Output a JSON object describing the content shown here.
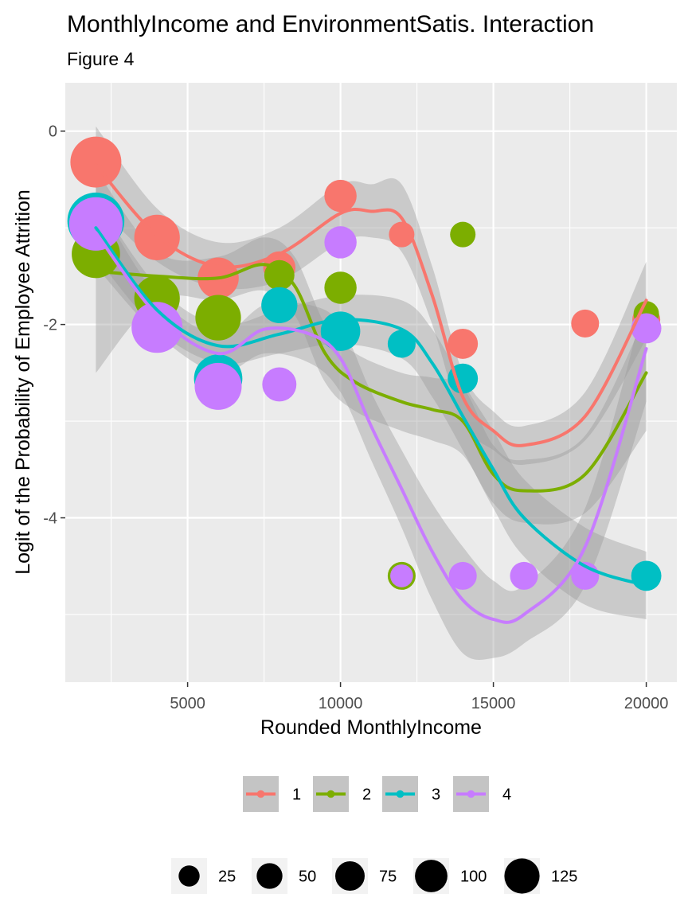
{
  "chart_data": {
    "type": "scatter",
    "title": "MonthlyIncome and EnvironmentSatis. Interaction",
    "subtitle": "Figure 4",
    "xlabel": "Rounded MonthlyIncome",
    "ylabel": "Logit of the Probability of Employee Attrition",
    "xlim": [
      1000,
      21000
    ],
    "ylim": [
      -5.7,
      0.5
    ],
    "x_ticks": [
      5000,
      10000,
      15000,
      20000
    ],
    "y_ticks": [
      0,
      -2,
      -4
    ],
    "grid": true,
    "legend_placement": "bottom",
    "series": [
      {
        "name": "1",
        "color": "#F8766D",
        "points": [
          {
            "x": 2000,
            "y": -0.32,
            "n": 100
          },
          {
            "x": 4000,
            "y": -1.1,
            "n": 80
          },
          {
            "x": 6000,
            "y": -1.52,
            "n": 65
          },
          {
            "x": 8000,
            "y": -1.41,
            "n": 40
          },
          {
            "x": 10000,
            "y": -0.67,
            "n": 40
          },
          {
            "x": 12000,
            "y": -1.07,
            "n": 25
          },
          {
            "x": 14000,
            "y": -2.2,
            "n": 35
          },
          {
            "x": 18000,
            "y": -1.99,
            "n": 30
          },
          {
            "x": 20000,
            "y": -1.95,
            "n": 30
          }
        ],
        "smooth": [
          {
            "x": 2000,
            "y": -0.35
          },
          {
            "x": 4000,
            "y": -1.08
          },
          {
            "x": 6000,
            "y": -1.4
          },
          {
            "x": 8000,
            "y": -1.27
          },
          {
            "x": 10000,
            "y": -0.85
          },
          {
            "x": 11000,
            "y": -0.83
          },
          {
            "x": 12000,
            "y": -0.9
          },
          {
            "x": 13000,
            "y": -1.7
          },
          {
            "x": 14000,
            "y": -2.75
          },
          {
            "x": 15000,
            "y": -3.1
          },
          {
            "x": 16000,
            "y": -3.25
          },
          {
            "x": 18000,
            "y": -2.95
          },
          {
            "x": 20000,
            "y": -1.75
          }
        ],
        "band": {
          "low": [
            -0.75,
            -1.35,
            -1.62,
            -1.55,
            -1.15,
            -1.1,
            -1.25,
            -2.0,
            -3.0,
            -3.3,
            -3.45,
            -3.2,
            -2.15
          ],
          "high": [
            0.05,
            -0.8,
            -1.15,
            -1.0,
            -0.55,
            -0.55,
            -0.55,
            -1.4,
            -2.5,
            -2.9,
            -3.05,
            -2.7,
            -1.35
          ]
        }
      },
      {
        "name": "2",
        "color": "#7CAE00",
        "points": [
          {
            "x": 2000,
            "y": -1.27,
            "n": 90
          },
          {
            "x": 4000,
            "y": -1.73,
            "n": 80
          },
          {
            "x": 6000,
            "y": -1.93,
            "n": 80
          },
          {
            "x": 8000,
            "y": -1.49,
            "n": 35
          },
          {
            "x": 10000,
            "y": -1.62,
            "n": 40
          },
          {
            "x": 12000,
            "y": -4.6,
            "n": 30
          },
          {
            "x": 14000,
            "y": -1.07,
            "n": 25
          },
          {
            "x": 20000,
            "y": -1.89,
            "n": 25
          }
        ],
        "smooth": [
          {
            "x": 2000,
            "y": -1.45
          },
          {
            "x": 4000,
            "y": -1.5
          },
          {
            "x": 6000,
            "y": -1.52
          },
          {
            "x": 7500,
            "y": -1.38
          },
          {
            "x": 8500,
            "y": -1.6
          },
          {
            "x": 9500,
            "y": -2.3
          },
          {
            "x": 10500,
            "y": -2.6
          },
          {
            "x": 12000,
            "y": -2.8
          },
          {
            "x": 13000,
            "y": -2.88
          },
          {
            "x": 14000,
            "y": -3.0
          },
          {
            "x": 15000,
            "y": -3.55
          },
          {
            "x": 16000,
            "y": -3.72
          },
          {
            "x": 18000,
            "y": -3.55
          },
          {
            "x": 20000,
            "y": -2.5
          }
        ],
        "band": {
          "low": [
            -2.5,
            -1.75,
            -1.75,
            -1.65,
            -1.9,
            -2.6,
            -2.9,
            -3.1,
            -3.2,
            -3.35,
            -3.85,
            -4.05,
            -3.95,
            -3.1
          ],
          "high": [
            -0.4,
            -1.25,
            -1.3,
            -1.1,
            -1.3,
            -2.0,
            -2.3,
            -2.5,
            -2.55,
            -2.65,
            -3.25,
            -3.4,
            -3.15,
            -1.9
          ]
        }
      },
      {
        "name": "3",
        "color": "#00BFC4",
        "points": [
          {
            "x": 2000,
            "y": -0.93,
            "n": 125
          },
          {
            "x": 4000,
            "y": -2.02,
            "n": 60
          },
          {
            "x": 6000,
            "y": -2.56,
            "n": 90
          },
          {
            "x": 8000,
            "y": -1.8,
            "n": 50
          },
          {
            "x": 10000,
            "y": -2.07,
            "n": 60
          },
          {
            "x": 12000,
            "y": -2.2,
            "n": 30
          },
          {
            "x": 14000,
            "y": -2.56,
            "n": 35
          },
          {
            "x": 20000,
            "y": -4.6,
            "n": 35
          }
        ],
        "smooth": [
          {
            "x": 2000,
            "y": -1.0
          },
          {
            "x": 4000,
            "y": -1.85
          },
          {
            "x": 6000,
            "y": -2.22
          },
          {
            "x": 8000,
            "y": -2.1
          },
          {
            "x": 10000,
            "y": -1.95
          },
          {
            "x": 12000,
            "y": -2.05
          },
          {
            "x": 13000,
            "y": -2.4
          },
          {
            "x": 14000,
            "y": -2.95
          },
          {
            "x": 15000,
            "y": -3.5
          },
          {
            "x": 16000,
            "y": -4.0
          },
          {
            "x": 18000,
            "y": -4.5
          },
          {
            "x": 20000,
            "y": -4.7
          }
        ],
        "band": {
          "low": [
            -1.3,
            -2.05,
            -2.4,
            -2.3,
            -2.2,
            -2.35,
            -2.75,
            -3.3,
            -3.9,
            -4.4,
            -4.9,
            -5.05
          ],
          "high": [
            -0.7,
            -1.6,
            -2.0,
            -1.85,
            -1.7,
            -1.75,
            -2.05,
            -2.6,
            -3.1,
            -3.6,
            -4.1,
            -4.35
          ]
        }
      },
      {
        "name": "4",
        "color": "#C77CFF",
        "points": [
          {
            "x": 2000,
            "y": -0.96,
            "n": 110
          },
          {
            "x": 4000,
            "y": -2.03,
            "n": 100
          },
          {
            "x": 6000,
            "y": -2.64,
            "n": 85
          },
          {
            "x": 8000,
            "y": -2.62,
            "n": 45
          },
          {
            "x": 10000,
            "y": -1.15,
            "n": 40
          },
          {
            "x": 12000,
            "y": -4.6,
            "n": 20
          },
          {
            "x": 14000,
            "y": -4.6,
            "n": 30
          },
          {
            "x": 16000,
            "y": -4.6,
            "n": 30
          },
          {
            "x": 18000,
            "y": -4.6,
            "n": 30
          },
          {
            "x": 20000,
            "y": -2.04,
            "n": 35
          }
        ],
        "smooth": [
          {
            "x": 2000,
            "y": -1.05
          },
          {
            "x": 4000,
            "y": -1.9
          },
          {
            "x": 6000,
            "y": -2.3
          },
          {
            "x": 7500,
            "y": -2.05
          },
          {
            "x": 9000,
            "y": -2.1
          },
          {
            "x": 10000,
            "y": -2.35
          },
          {
            "x": 11000,
            "y": -3.05
          },
          {
            "x": 12000,
            "y": -3.7
          },
          {
            "x": 13000,
            "y": -4.35
          },
          {
            "x": 14000,
            "y": -4.85
          },
          {
            "x": 15000,
            "y": -5.05
          },
          {
            "x": 16000,
            "y": -5.0
          },
          {
            "x": 18000,
            "y": -4.3
          },
          {
            "x": 20000,
            "y": -2.25
          }
        ],
        "band": {
          "low": [
            -1.4,
            -2.1,
            -2.5,
            -2.3,
            -2.4,
            -2.7,
            -3.4,
            -4.1,
            -4.85,
            -5.4,
            -5.45,
            -5.3,
            -4.7,
            -2.8
          ],
          "high": [
            -0.7,
            -1.7,
            -2.1,
            -1.8,
            -1.8,
            -2.0,
            -2.7,
            -3.3,
            -3.85,
            -4.3,
            -4.65,
            -4.7,
            -3.9,
            -1.7
          ]
        }
      }
    ],
    "legends": {
      "color": {
        "entries": [
          "1",
          "2",
          "3",
          "4"
        ]
      },
      "size": {
        "entries": [
          {
            "label": "25",
            "value": 25
          },
          {
            "label": "50",
            "value": 50
          },
          {
            "label": "75",
            "value": 75
          },
          {
            "label": "100",
            "value": 100
          },
          {
            "label": "125",
            "value": 125
          }
        ]
      }
    }
  }
}
